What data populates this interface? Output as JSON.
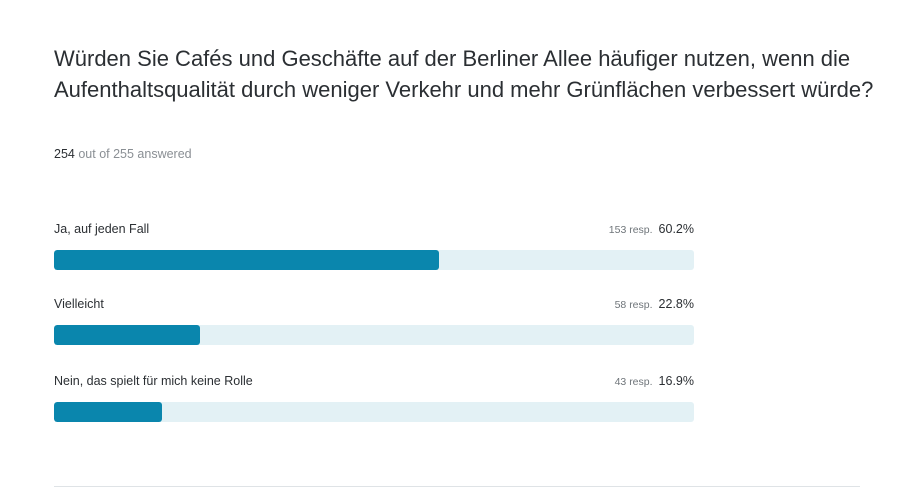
{
  "question": "Würden Sie Cafés und Geschäfte auf der Berliner Allee häufiger nutzen, wenn die Aufenthaltsqualität durch weniger Verkehr und mehr Grünflächen verbessert würde?",
  "answered": {
    "count": "254",
    "rest": "out of 255 answered"
  },
  "colors": {
    "bar_fill": "#0a86ad",
    "bar_track": "#e3f1f5"
  },
  "chart_data": {
    "type": "bar",
    "orientation": "horizontal",
    "categories": [
      "Ja, auf jeden Fall",
      "Vielleicht",
      "Nein, das spielt für mich keine Rolle"
    ],
    "values": [
      60.2,
      22.8,
      16.9
    ],
    "responses": [
      153,
      58,
      43
    ],
    "xlim": [
      0,
      100
    ],
    "grid": false,
    "options": [
      {
        "label": "Ja, auf jeden Fall",
        "resp": "153 resp.",
        "pct": "60.2%",
        "value": 60.2
      },
      {
        "label": "Vielleicht",
        "resp": "58 resp.",
        "pct": "22.8%",
        "value": 22.8
      },
      {
        "label": "Nein, das spielt für mich keine Rolle",
        "resp": "43 resp.",
        "pct": "16.9%",
        "value": 16.9
      }
    ]
  }
}
